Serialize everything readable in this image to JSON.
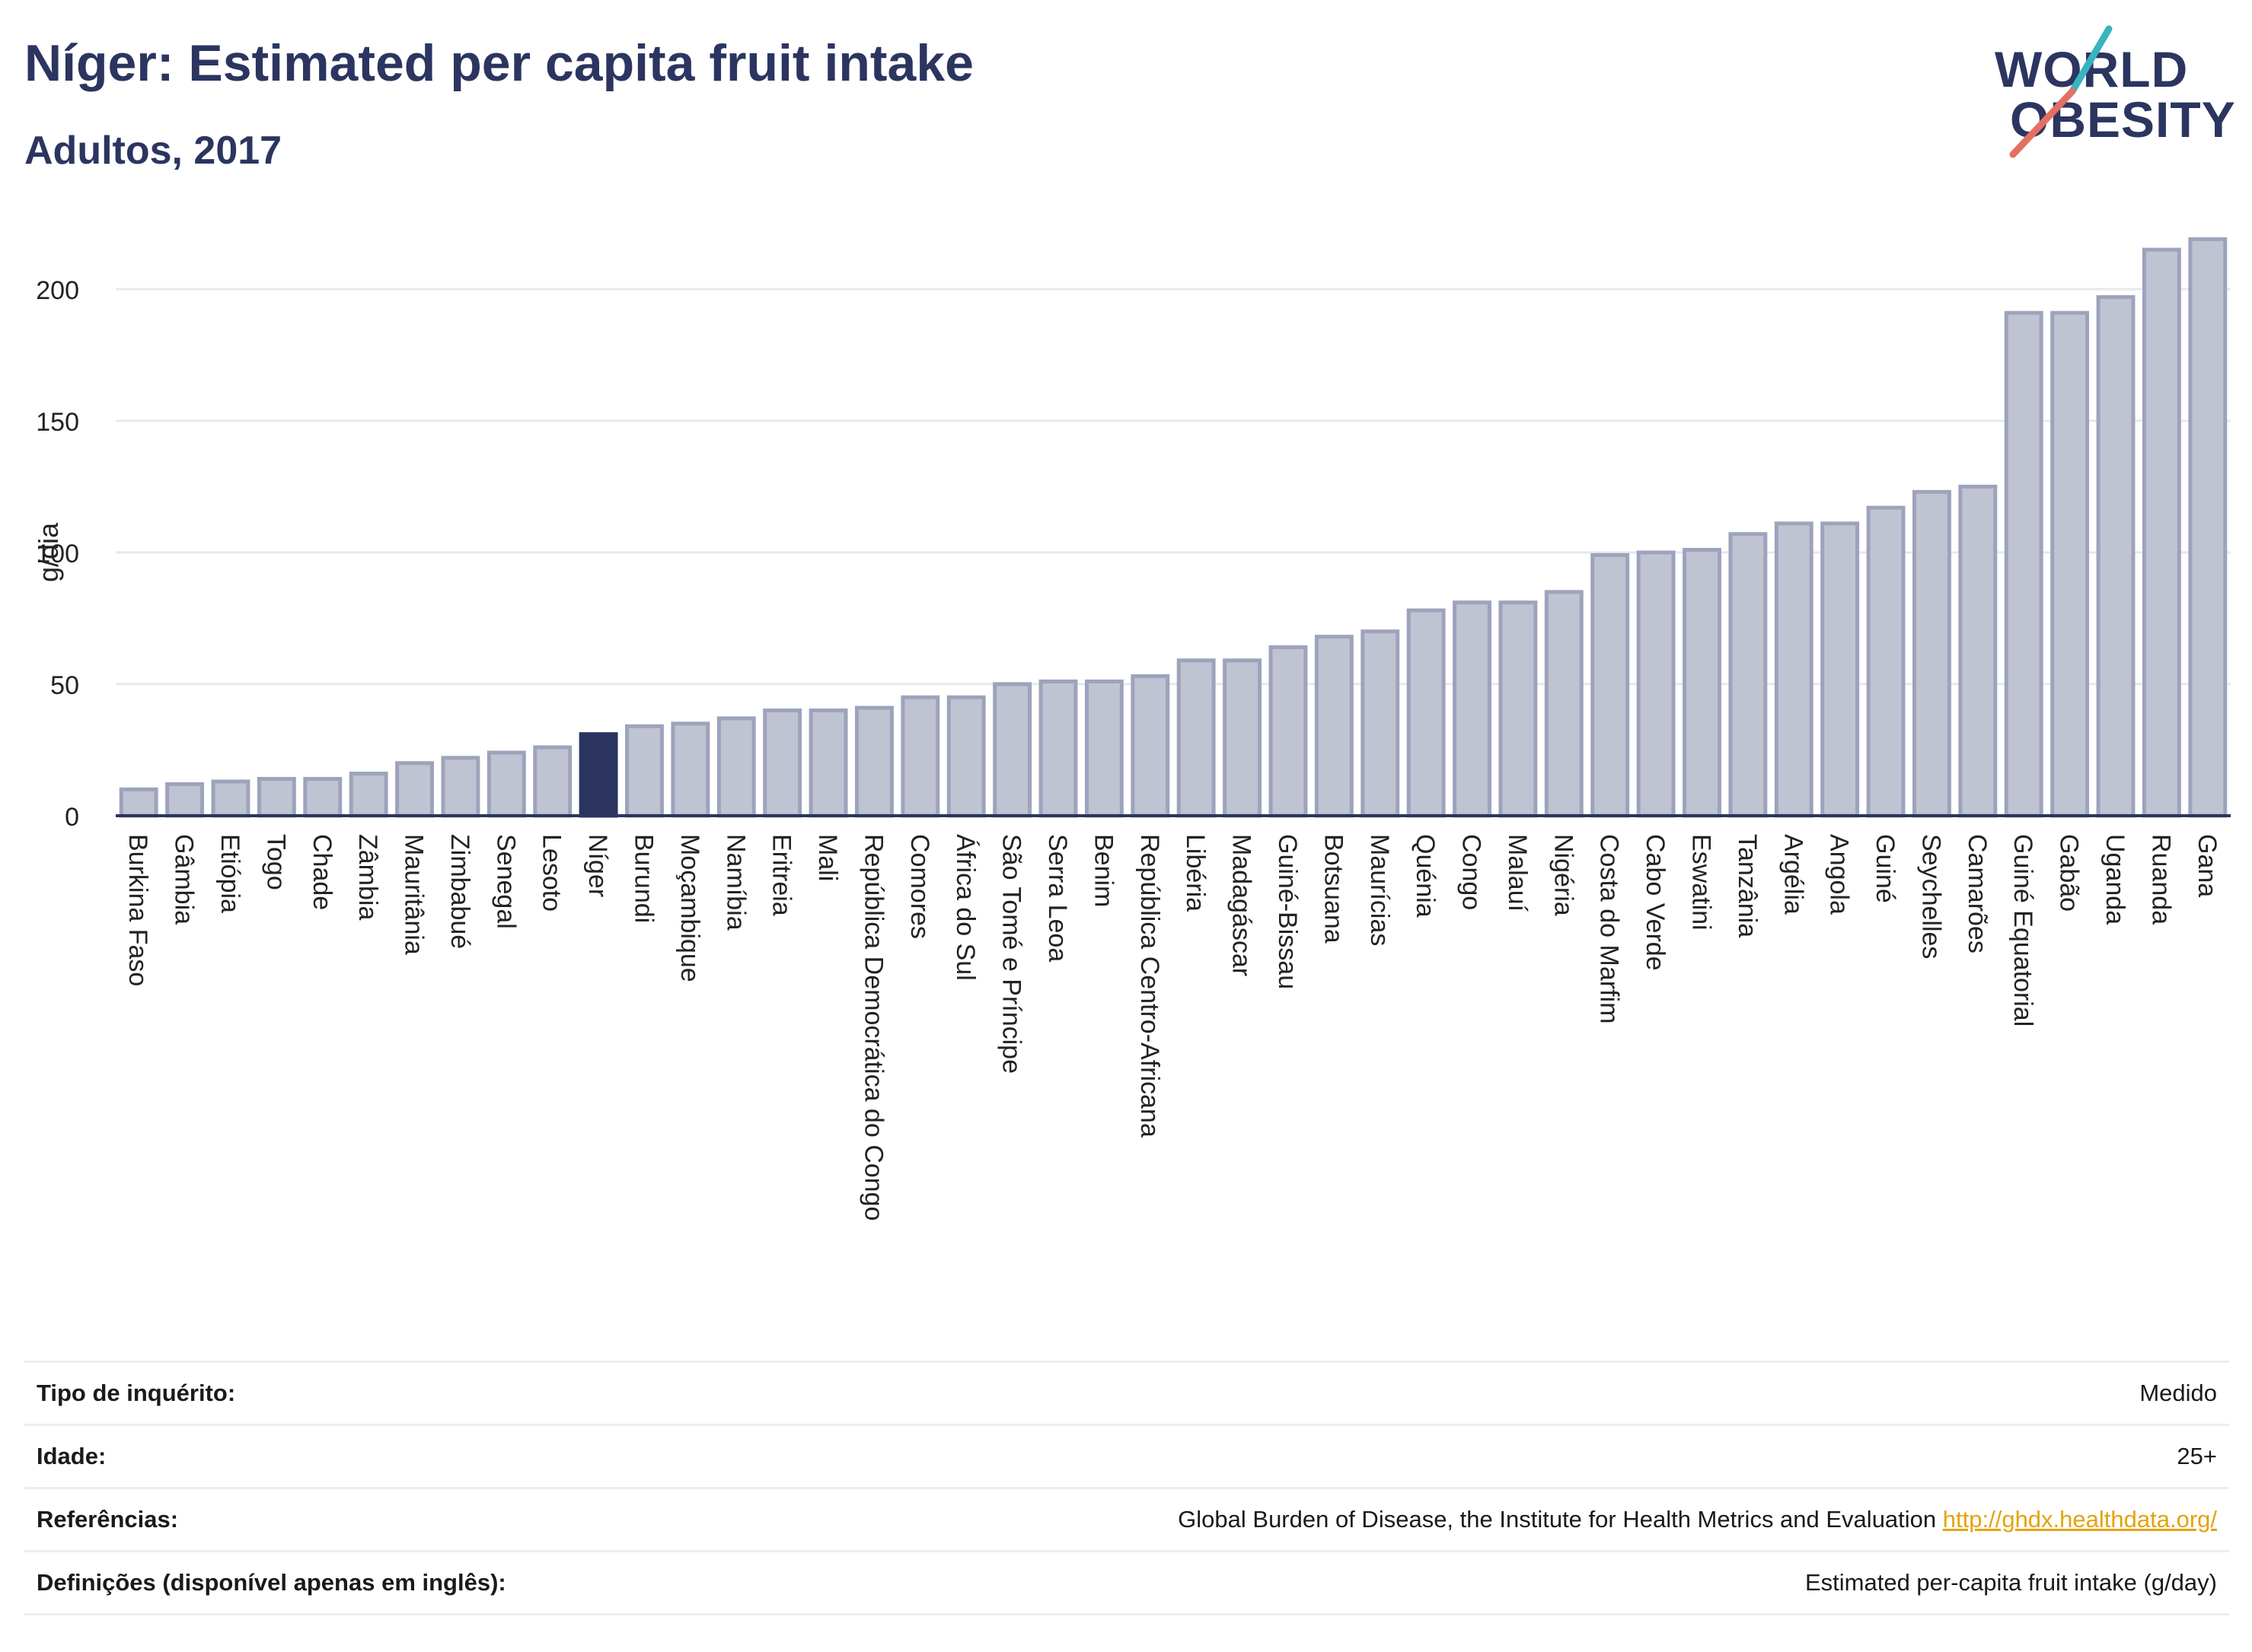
{
  "header": {
    "title": "Níger: Estimated per capita fruit intake",
    "subtitle": "Adultos, 2017"
  },
  "logo": {
    "line1": "WORLD",
    "line2": "OBESITY"
  },
  "colors": {
    "bar": "#bfc3d2",
    "bar_stroke": "#9da3bb",
    "highlight": "#2b3560",
    "grid": "#e6e8ee"
  },
  "chart_data": {
    "type": "bar",
    "ylabel": "g/dia",
    "ylim": [
      0,
      225
    ],
    "yticks": [
      0,
      50,
      100,
      150,
      200
    ],
    "highlight": "Níger",
    "categories": [
      "Burkina Faso",
      "Gâmbia",
      "Etiópia",
      "Togo",
      "Chade",
      "Zâmbia",
      "Mauritânia",
      "Zimbabué",
      "Senegal",
      "Lesoto",
      "Níger",
      "Burundi",
      "Moçambique",
      "Namíbia",
      "Eritreia",
      "Mali",
      "República Democrática do Congo",
      "Comores",
      "África do Sul",
      "São Tomé e Príncipe",
      "Serra Leoa",
      "Benim",
      "República Centro-Africana",
      "Libéria",
      "Madagáscar",
      "Guiné-Bissau",
      "Botsuana",
      "Maurícias",
      "Quénia",
      "Congo",
      "Malauí",
      "Nigéria",
      "Costa do Marfim",
      "Cabo Verde",
      "Eswatini",
      "Tanzânia",
      "Argélia",
      "Angola",
      "Guiné",
      "Seychelles",
      "Camarões",
      "Guiné Equatorial",
      "Gabão",
      "Uganda",
      "Ruanda",
      "Gana"
    ],
    "values": [
      10,
      12,
      13,
      14,
      14,
      16,
      20,
      22,
      24,
      26,
      31,
      34,
      35,
      37,
      40,
      40,
      41,
      45,
      45,
      50,
      51,
      51,
      53,
      59,
      59,
      64,
      68,
      70,
      78,
      81,
      81,
      85,
      99,
      100,
      101,
      107,
      111,
      111,
      117,
      123,
      125,
      191,
      191,
      197,
      215,
      219
    ],
    "grid": true
  },
  "table": {
    "rows": [
      {
        "label": "Tipo de inquérito:",
        "value": "Medido"
      },
      {
        "label": "Idade:",
        "value": "25+"
      },
      {
        "label": "Referências:",
        "value": "Global Burden of Disease, the Institute for Health Metrics and Evaluation",
        "link": "http://ghdx.healthdata.org/"
      },
      {
        "label": "Definições (disponível apenas em inglês):",
        "value": "Estimated per-capita fruit intake (g/day)"
      }
    ]
  }
}
